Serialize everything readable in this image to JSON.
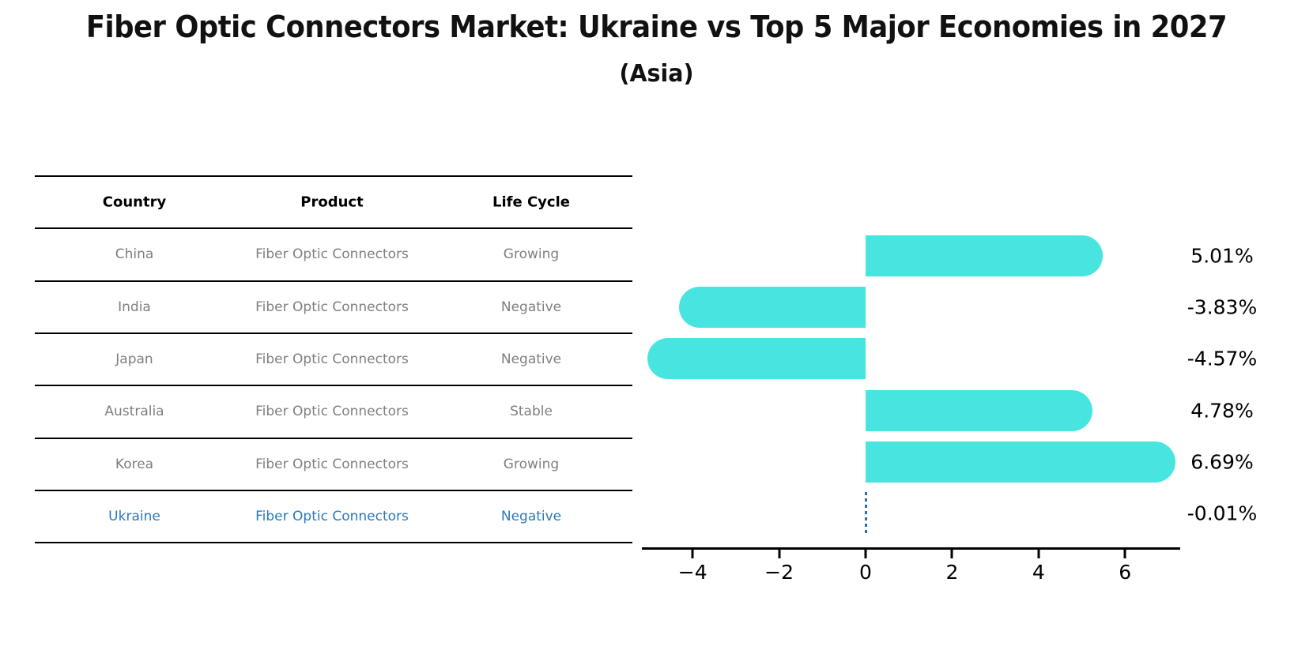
{
  "header": {
    "title": "Fiber Optic Connectors Market: Ukraine vs Top 5 Major Economies in 2027",
    "subtitle": "(Asia)"
  },
  "table": {
    "columns": [
      "Country",
      "Product",
      "Life Cycle"
    ],
    "rows": [
      {
        "country": "China",
        "product": "Fiber Optic Connectors",
        "life_cycle": "Growing",
        "highlight": false
      },
      {
        "country": "India",
        "product": "Fiber Optic Connectors",
        "life_cycle": "Negative",
        "highlight": false
      },
      {
        "country": "Japan",
        "product": "Fiber Optic Connectors",
        "life_cycle": "Negative",
        "highlight": false
      },
      {
        "country": "Australia",
        "product": "Fiber Optic Connectors",
        "life_cycle": "Stable",
        "highlight": false
      },
      {
        "country": "Korea",
        "product": "Fiber Optic Connectors",
        "life_cycle": "Growing",
        "highlight": false
      },
      {
        "country": "Ukraine",
        "product": "Fiber Optic Connectors",
        "life_cycle": "Negative",
        "highlight": true
      }
    ],
    "text_color": "#7f7f7f",
    "highlight_color": "#2979bd"
  },
  "chart_data": {
    "type": "bar",
    "orientation": "horizontal",
    "title": "",
    "xlabel": "",
    "ylabel": "",
    "categories": [
      "China",
      "India",
      "Japan",
      "Australia",
      "Korea",
      "Ukraine"
    ],
    "values": [
      5.01,
      -3.83,
      -4.57,
      4.78,
      6.69,
      -0.01
    ],
    "value_labels": [
      "5.01%",
      "-3.83%",
      "-4.57%",
      "4.78%",
      "6.69%",
      "-0.01%"
    ],
    "x_tick_values": [
      -4,
      -2,
      0,
      2,
      4,
      6
    ],
    "x_tick_labels": [
      "−4",
      "−2",
      "0",
      "2",
      "4",
      "6"
    ],
    "xlim": [
      -5.15,
      7.28
    ],
    "grid": false,
    "legend": null,
    "bar_color": "#48e5e0",
    "zero_marker_color": "#2e6da8",
    "axis_color": "#000000"
  }
}
